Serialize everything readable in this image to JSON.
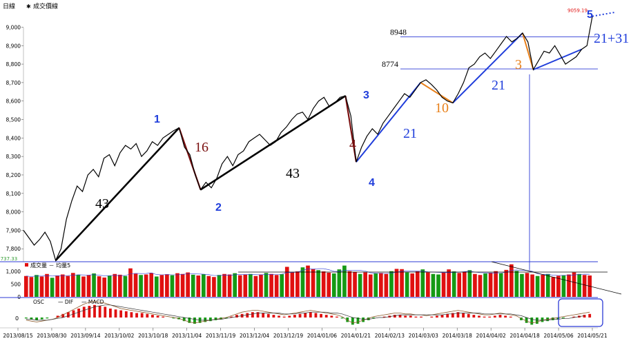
{
  "header": {
    "period_label": "日線",
    "series_label": "成交價線"
  },
  "colors": {
    "price": "#000000",
    "black_leg": "#000000",
    "brown_leg": "#7a1010",
    "blue_leg": "#1f3ddb",
    "orange_leg": "#e8801a",
    "axis_blue": "#2b3ad6",
    "vol_up": "#e01010",
    "vol_down": "#159a15",
    "low_green": "#2e9a2e",
    "high_red": "#e01010"
  },
  "chart_data": {
    "type": "line",
    "price_axis": {
      "ticks": [
        "9,000",
        "8,900",
        "8,800",
        "8,700",
        "8,600",
        "8,500",
        "8,400",
        "8,300",
        "8,200",
        "8,100",
        "8,000",
        "7,900",
        "7,800"
      ],
      "tick_values": [
        9000,
        8900,
        8800,
        8700,
        8600,
        8500,
        8400,
        8300,
        8200,
        8100,
        8000,
        7900,
        7800
      ],
      "ylim": [
        7730,
        9080
      ]
    },
    "dates": [
      "2013/08/15",
      "2013/08/30",
      "2013/09/14",
      "2013/10/02",
      "2013/10/18",
      "2013/11/04",
      "2013/11/19",
      "2013/12/04",
      "2013/12/19",
      "2014/01/06",
      "2014/01/21",
      "2014/02/13",
      "2014/03/03",
      "2014/03/18",
      "2014/04/02",
      "2014/04/18",
      "2014/05/06",
      "2014/05/21"
    ],
    "price_series": {
      "name": "成交價線",
      "values": [
        7900,
        7860,
        7820,
        7850,
        7890,
        7840,
        7737,
        7800,
        7960,
        8060,
        8140,
        8110,
        8200,
        8230,
        8190,
        8290,
        8310,
        8250,
        8320,
        8360,
        8340,
        8370,
        8300,
        8330,
        8380,
        8360,
        8400,
        8420,
        8440,
        8455,
        8350,
        8310,
        8200,
        8120,
        8160,
        8130,
        8180,
        8260,
        8300,
        8250,
        8310,
        8330,
        8380,
        8400,
        8420,
        8390,
        8360,
        8380,
        8430,
        8460,
        8500,
        8530,
        8540,
        8500,
        8560,
        8600,
        8620,
        8570,
        8590,
        8620,
        8628,
        8520,
        8270,
        8350,
        8410,
        8450,
        8420,
        8480,
        8520,
        8560,
        8600,
        8640,
        8620,
        8660,
        8700,
        8715,
        8690,
        8660,
        8620,
        8600,
        8590,
        8640,
        8700,
        8780,
        8800,
        8840,
        8860,
        8830,
        8870,
        8910,
        8950,
        8920,
        8940,
        8968,
        8920,
        8770,
        8820,
        8870,
        8860,
        8900,
        8850,
        8800,
        8820,
        8840,
        8880,
        8900,
        9059.19
      ]
    },
    "price_annotations": {
      "low": {
        "label": "7737.33",
        "value": 7737.33
      },
      "high": {
        "label": "9059.19",
        "value": 9059.19
      }
    },
    "resistance_lines": [
      {
        "label": "8948",
        "value": 8948
      },
      {
        "label": "8774",
        "value": 8774
      }
    ],
    "wave_labels": [
      "1",
      "2",
      "3",
      "4",
      "5"
    ],
    "leg_labels": [
      "43",
      "16",
      "43",
      "4",
      "21",
      "10",
      "21",
      "3",
      "21+31"
    ],
    "volume_panel": {
      "label": "成交量 － 均量5",
      "ticks": [
        "1,000",
        "500",
        "0"
      ],
      "tick_values": [
        1000,
        500,
        0
      ],
      "ylim": [
        0,
        1300
      ],
      "values": [
        820,
        780,
        860,
        800,
        900,
        750,
        840,
        880,
        820,
        940,
        870,
        800,
        850,
        920,
        810,
        760,
        830,
        900,
        870,
        820,
        1120,
        910,
        860,
        880,
        940,
        800,
        860,
        890,
        850,
        930,
        900,
        960,
        870,
        840,
        890,
        820,
        780,
        860,
        900,
        880,
        930,
        850,
        870,
        900,
        820,
        880,
        940,
        900,
        860,
        890,
        1180,
        960,
        1000,
        1160,
        1230,
        1100,
        1050,
        1000,
        950,
        920,
        1080,
        1230,
        1010,
        980,
        900,
        960,
        880,
        920,
        940,
        900,
        1010,
        1100,
        1090,
        960,
        920,
        1000,
        1080,
        960,
        900,
        880,
        950,
        1080,
        1000,
        940,
        990,
        1050,
        900,
        860,
        920,
        950,
        1010,
        930,
        1060,
        1280,
        1020,
        900,
        940,
        880,
        820,
        870,
        900,
        780,
        830,
        850,
        880,
        960,
        900,
        860,
        840
      ],
      "up_flags": [
        1,
        1,
        0,
        1,
        1,
        0,
        1,
        1,
        1,
        1,
        0,
        1,
        1,
        0,
        1,
        1,
        0,
        1,
        1,
        0,
        1,
        1,
        0,
        1,
        1,
        0,
        1,
        1,
        0,
        1,
        1,
        1,
        0,
        1,
        0,
        1,
        1,
        0,
        1,
        1,
        0,
        1,
        1,
        0,
        1,
        1,
        0,
        1,
        1,
        0,
        1,
        1,
        1,
        0,
        1,
        1,
        0,
        1,
        1,
        0,
        0,
        0,
        1,
        1,
        0,
        1,
        1,
        0,
        1,
        1,
        0,
        1,
        1,
        0,
        1,
        1,
        0,
        1,
        0,
        0,
        1,
        1,
        0,
        1,
        1,
        0,
        1,
        1,
        0,
        1,
        1,
        0,
        1,
        1,
        0,
        0,
        1,
        1,
        0,
        1,
        0,
        1,
        1,
        0,
        1,
        1,
        0,
        1,
        1
      ]
    },
    "macd_panel": {
      "legend": [
        "OSC",
        "DIF",
        "MACD"
      ],
      "zero_label": "0",
      "osc_values": [
        -1,
        -2,
        -3,
        -2,
        -1,
        0,
        2,
        4,
        6,
        8,
        10,
        12,
        13,
        14,
        13,
        12,
        10,
        9,
        8,
        7,
        6,
        5,
        5,
        4,
        3,
        2,
        1,
        0,
        -1,
        -2,
        -4,
        -6,
        -7,
        -6,
        -5,
        -4,
        -3,
        -2,
        -1,
        1,
        3,
        4,
        5,
        6,
        6,
        5,
        4,
        3,
        2,
        1,
        2,
        3,
        4,
        5,
        6,
        5,
        4,
        3,
        2,
        1,
        -1,
        -5,
        -8,
        -7,
        -5,
        -3,
        -1,
        0,
        1,
        2,
        3,
        3,
        2,
        2,
        1,
        1,
        0,
        1,
        2,
        3,
        4,
        5,
        6,
        5,
        4,
        3,
        2,
        1,
        1,
        2,
        3,
        2,
        1,
        0,
        -3,
        -6,
        -8,
        -7,
        -5,
        -4,
        -3,
        -2,
        -1,
        0,
        1,
        2,
        3,
        4
      ],
      "dif_values": [
        -3,
        -4,
        -5,
        -4,
        -3,
        -2,
        0,
        3,
        6,
        9,
        12,
        15,
        17,
        18,
        17,
        16,
        14,
        12,
        10,
        9,
        8,
        7,
        6,
        5,
        4,
        3,
        2,
        1,
        0,
        -1,
        -3,
        -5,
        -6,
        -5,
        -4,
        -3,
        -2,
        -1,
        0,
        2,
        4,
        6,
        7,
        8,
        8,
        7,
        6,
        5,
        4,
        3,
        4,
        5,
        6,
        7,
        8,
        7,
        6,
        5,
        4,
        3,
        1,
        -3,
        -6,
        -5,
        -3,
        -1,
        1,
        2,
        3,
        4,
        5,
        5,
        4,
        4,
        3,
        3,
        2,
        3,
        4,
        5,
        6,
        7,
        8,
        7,
        6,
        5,
        4,
        3,
        3,
        4,
        5,
        4,
        3,
        2,
        -1,
        -4,
        -6,
        -5,
        -3,
        -2,
        -1,
        0,
        1,
        2,
        3,
        4,
        5,
        6
      ],
      "macd_values": [
        -2,
        -2,
        -3,
        -3,
        -3,
        -2,
        -1,
        0,
        2,
        4,
        6,
        8,
        10,
        12,
        13,
        14,
        14,
        13,
        12,
        11,
        10,
        9,
        8,
        7,
        6,
        5,
        4,
        3,
        2,
        1,
        0,
        -1,
        -2,
        -3,
        -3,
        -3,
        -2,
        -2,
        -1,
        0,
        1,
        2,
        3,
        4,
        5,
        5,
        5,
        5,
        5,
        4,
        4,
        4,
        5,
        5,
        6,
        6,
        6,
        6,
        5,
        5,
        4,
        2,
        0,
        -1,
        -2,
        -2,
        -1,
        0,
        0,
        1,
        2,
        3,
        3,
        3,
        3,
        3,
        3,
        3,
        3,
        3,
        4,
        4,
        5,
        5,
        5,
        5,
        5,
        4,
        4,
        4,
        4,
        4,
        4,
        3,
        2,
        0,
        -2,
        -3,
        -3,
        -3,
        -2,
        -2,
        -1,
        -1,
        0,
        1,
        2
      ]
    }
  }
}
